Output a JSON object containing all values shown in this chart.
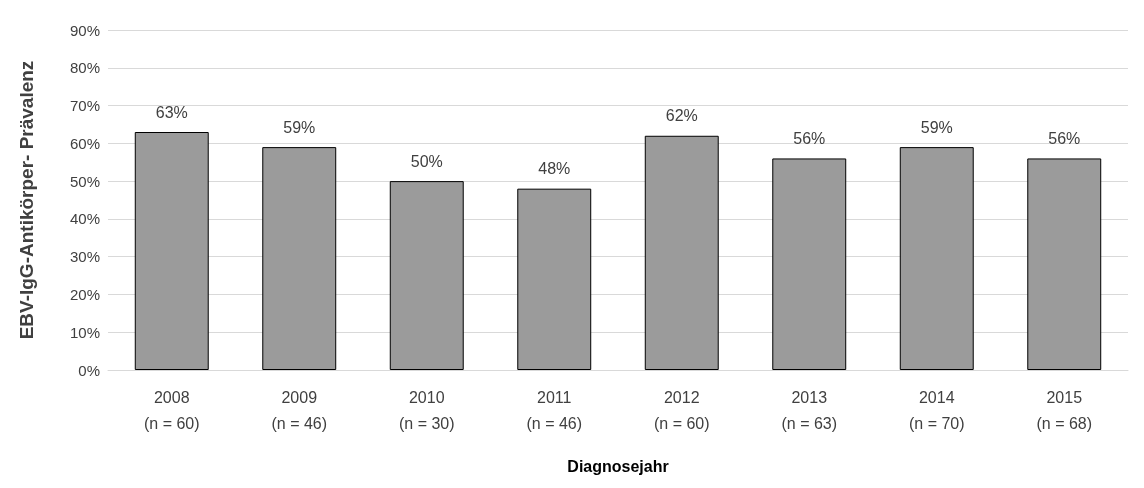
{
  "chart_data": {
    "type": "bar",
    "xlabel": "Diagnosejahr",
    "ylabel": "EBV-IgG-Antikörper- Prävalenz",
    "categories": [
      "2008\n(n = 60)",
      "2009\n(n = 46)",
      "2010\n(n = 30)",
      "2011\n(n = 46)",
      "2012\n(n = 60)",
      "2013\n(n = 63)",
      "2014\n(n = 70)",
      "2015\n(n = 68)"
    ],
    "values": [
      63,
      59,
      50,
      48,
      62,
      56,
      59,
      56
    ],
    "value_labels": [
      "63%",
      "59%",
      "50%",
      "48%",
      "62%",
      "56%",
      "59%",
      "56%"
    ],
    "color": "#9b9b9b",
    "ylim": [
      0,
      90
    ],
    "yticks": [
      {
        "value": 0,
        "label": "0%"
      },
      {
        "value": 10,
        "label": "10%"
      },
      {
        "value": 20,
        "label": "20%"
      },
      {
        "value": 30,
        "label": "30%"
      },
      {
        "value": 40,
        "label": "40%"
      },
      {
        "value": 50,
        "label": "50%"
      },
      {
        "value": 60,
        "label": "60%"
      },
      {
        "value": 70,
        "label": "70%"
      },
      {
        "value": 80,
        "label": "80%"
      },
      {
        "value": 90,
        "label": "90%"
      }
    ],
    "grid": "y"
  }
}
